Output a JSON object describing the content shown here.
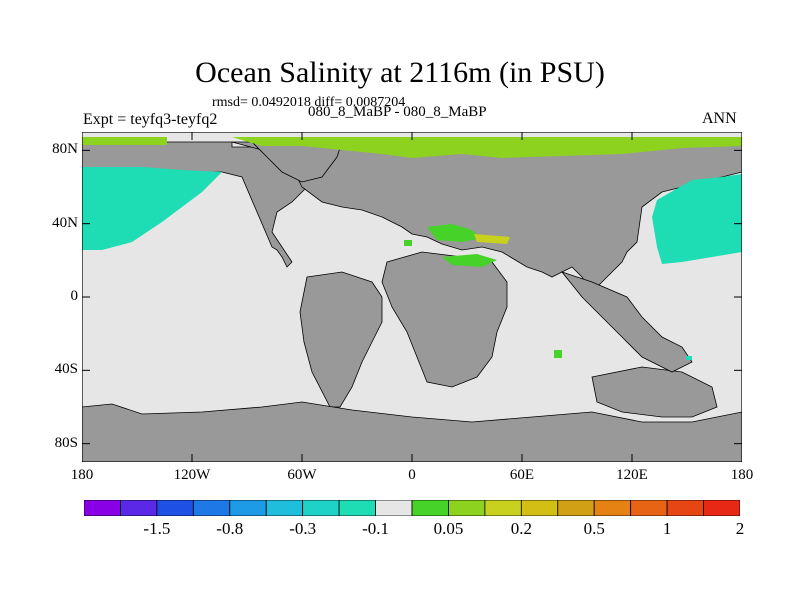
{
  "title": "Ocean Salinity at 2116m (in PSU)",
  "stats_line": "rmsd= 0.0492018 diff= 0.0087204",
  "experiment": "Expt = teyfq3-teyfq2",
  "period": "080_8_MaBP - 080_8_MaBP",
  "season": "ANN",
  "map": {
    "lon_range": [
      -180,
      180
    ],
    "lat_range": [
      -90,
      90
    ],
    "lat_ticks": [
      {
        "value": 80,
        "label": "80N"
      },
      {
        "value": 40,
        "label": "40N"
      },
      {
        "value": 0,
        "label": "0"
      },
      {
        "value": -40,
        "label": "40S"
      },
      {
        "value": -80,
        "label": "80S"
      }
    ],
    "lon_ticks": [
      {
        "value": -180,
        "label": "180"
      },
      {
        "value": -120,
        "label": "120W"
      },
      {
        "value": -60,
        "label": "60W"
      },
      {
        "value": 0,
        "label": "0"
      },
      {
        "value": 60,
        "label": "60E"
      },
      {
        "value": 120,
        "label": "120E"
      },
      {
        "value": 180,
        "label": "180"
      }
    ],
    "land_color": "#999999",
    "ocean_color": "#e6e6e6"
  },
  "colorbar": {
    "colors": [
      "#8a00e6",
      "#5a28e6",
      "#1e50e6",
      "#1e78e6",
      "#1e9be6",
      "#1ebedc",
      "#1ed2c8",
      "#1edcb4",
      "#e6e6e6",
      "#46d228",
      "#8cd21e",
      "#c8d21e",
      "#d2be14",
      "#d2a014",
      "#e68214",
      "#e66414",
      "#e64614",
      "#e62814"
    ],
    "labels": [
      "-1.5",
      "-0.8",
      "-0.3",
      "-0.1",
      "0.05",
      "0.2",
      "0.5",
      "1",
      "2"
    ]
  }
}
